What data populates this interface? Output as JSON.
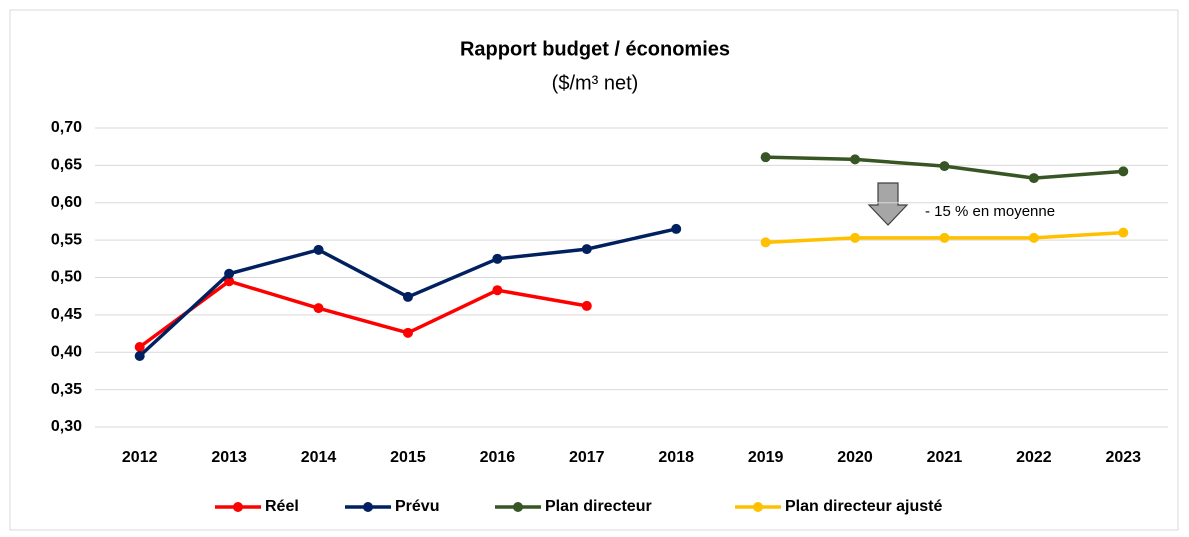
{
  "chart_data": {
    "type": "line",
    "title": "Rapport budget / économies",
    "subtitle": "($/m³ net)",
    "categories": [
      "2012",
      "2013",
      "2014",
      "2015",
      "2016",
      "2017",
      "2018",
      "2019",
      "2020",
      "2021",
      "2022",
      "2023"
    ],
    "series": [
      {
        "name": "Réel",
        "color": "#ff0000",
        "values": [
          0.407,
          0.495,
          0.459,
          0.426,
          0.483,
          0.462,
          null,
          null,
          null,
          null,
          null,
          null
        ]
      },
      {
        "name": "Prévu",
        "color": "#002060",
        "values": [
          0.395,
          0.505,
          0.537,
          0.474,
          0.525,
          0.538,
          0.565,
          null,
          null,
          null,
          null,
          null
        ]
      },
      {
        "name": "Plan directeur",
        "color": "#375623",
        "values": [
          null,
          null,
          null,
          null,
          null,
          null,
          null,
          0.661,
          0.658,
          0.649,
          0.633,
          0.642
        ]
      },
      {
        "name": "Plan directeur ajusté",
        "color": "#ffc000",
        "values": [
          null,
          null,
          null,
          null,
          null,
          null,
          null,
          0.547,
          0.553,
          0.553,
          0.553,
          0.56
        ]
      }
    ],
    "ylim": [
      0.3,
      0.7
    ],
    "yticks": [
      {
        "value": 0.3,
        "label": "0,30"
      },
      {
        "value": 0.35,
        "label": "0,35"
      },
      {
        "value": 0.4,
        "label": "0,40"
      },
      {
        "value": 0.45,
        "label": "0,45"
      },
      {
        "value": 0.5,
        "label": "0,50"
      },
      {
        "value": 0.55,
        "label": "0,55"
      },
      {
        "value": 0.6,
        "label": "0,60"
      },
      {
        "value": 0.65,
        "label": "0,65"
      },
      {
        "value": 0.7,
        "label": "0,70"
      }
    ],
    "annotations": [
      "- 15 % en moyenne"
    ],
    "grid": true,
    "legend": "bottom"
  }
}
